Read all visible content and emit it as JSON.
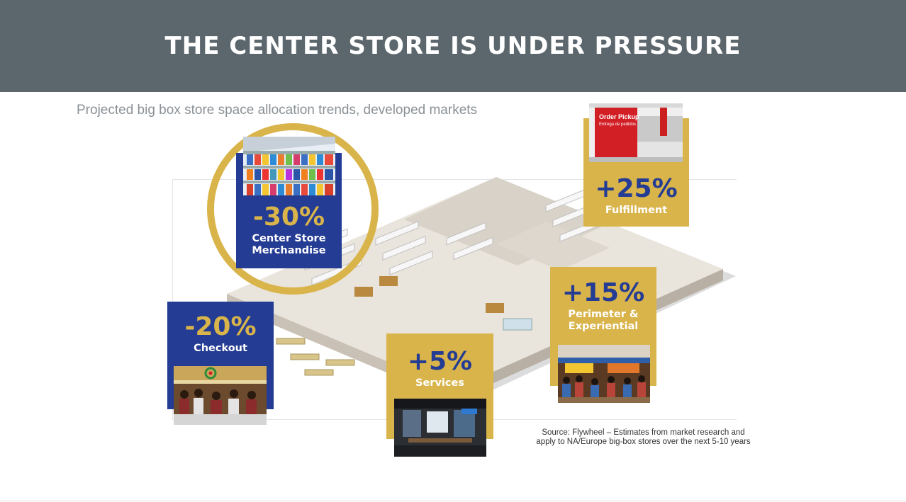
{
  "title": "THE CENTER STORE IS UNDER PRESSURE",
  "subtitle": "Projected big box store space allocation trends, developed markets",
  "cards": {
    "center": {
      "value": "-30%",
      "label_line1": "Center Store",
      "label_line2": "Merchandise"
    },
    "fulfillment": {
      "value": "+25%",
      "label": "Fulfillment"
    },
    "checkout": {
      "value": "-20%",
      "label": "Checkout"
    },
    "services": {
      "value": "+5%",
      "label": "Services"
    },
    "perimeter": {
      "value": "+15%",
      "label_line1": "Perimeter &",
      "label_line2": "Experiential"
    }
  },
  "photo_sign": {
    "line1": "Order Pickup",
    "line2": "Entrega de pedidos"
  },
  "source": {
    "line1": "Source: Flywheel – Estimates from market research and",
    "line2": "apply to NA/Europe big-box stores over the next 5-10 years"
  },
  "colors": {
    "header": "#5b666d",
    "navy": "#243c93",
    "gold": "#d9b44a"
  }
}
